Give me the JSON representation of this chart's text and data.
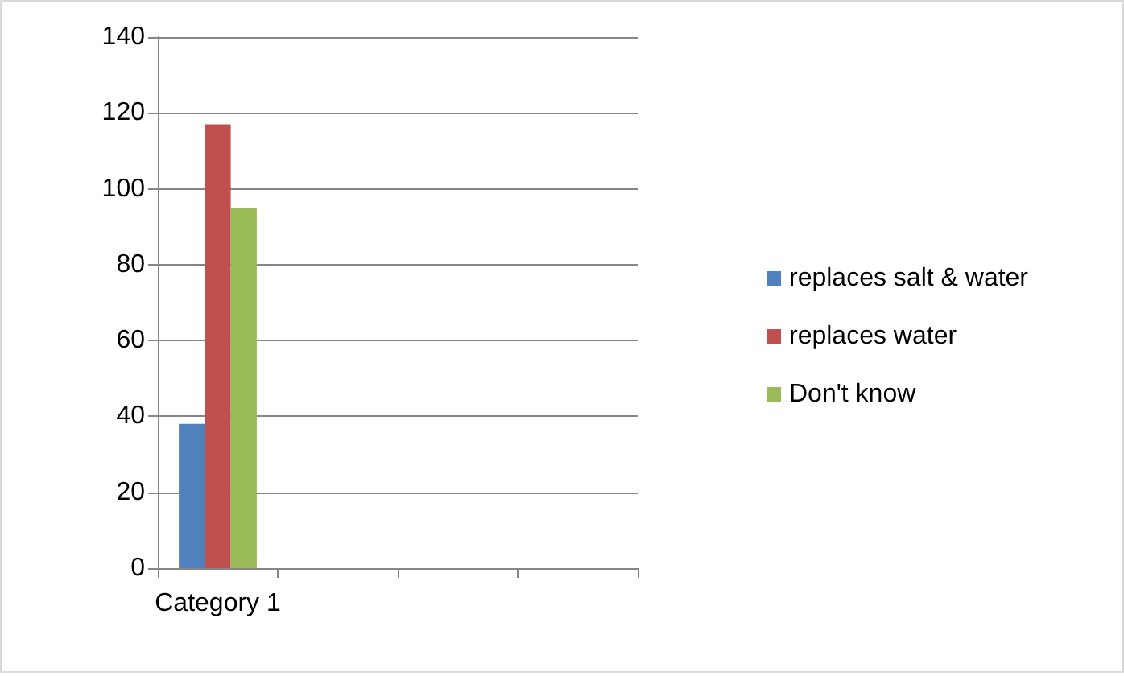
{
  "chart_data": {
    "type": "bar",
    "categories": [
      "Category 1",
      null,
      null,
      null
    ],
    "series": [
      {
        "name": "replaces salt & water",
        "color": "#4f81bd",
        "values": [
          38,
          null,
          null,
          null
        ]
      },
      {
        "name": "replaces water",
        "color": "#c0504d",
        "values": [
          117,
          null,
          null,
          null
        ]
      },
      {
        "name": "Don't know",
        "color": "#9bbb59",
        "values": [
          95,
          null,
          null,
          null
        ]
      }
    ],
    "ylim": [
      0,
      140
    ],
    "yticks": [
      0,
      20,
      40,
      60,
      80,
      100,
      120,
      140
    ],
    "grid": "y",
    "legend": "right"
  }
}
